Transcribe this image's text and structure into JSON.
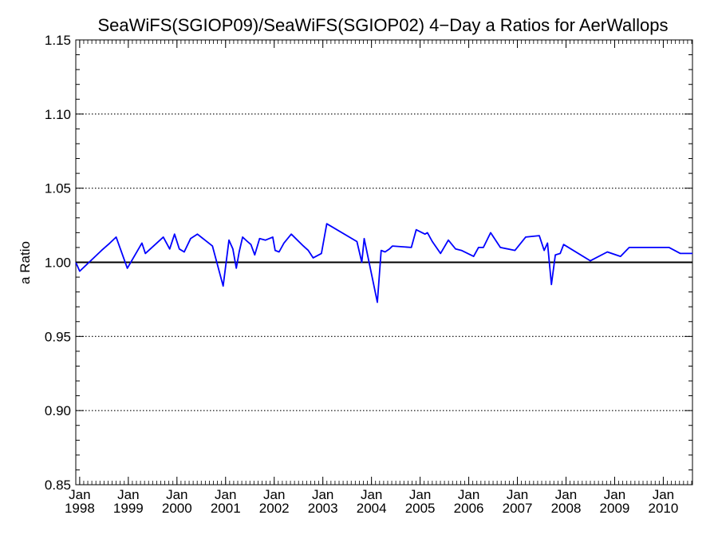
{
  "chart_data": {
    "type": "line",
    "title": "SeaWiFS(SGIOP09)/SeaWiFS(SGIOP02) 4−Day a Ratios for AerWallops",
    "xlabel": "",
    "ylabel": "a Ratio",
    "ylim": [
      0.85,
      1.15
    ],
    "yticks": [
      "0.85",
      "0.90",
      "0.95",
      "1.00",
      "1.05",
      "1.10",
      "1.15"
    ],
    "xlim": [
      1997.92,
      2010.6
    ],
    "xticks": [
      {
        "month": "Jan",
        "year": "1998"
      },
      {
        "month": "Jan",
        "year": "1999"
      },
      {
        "month": "Jan",
        "year": "2000"
      },
      {
        "month": "Jan",
        "year": "2001"
      },
      {
        "month": "Jan",
        "year": "2002"
      },
      {
        "month": "Jan",
        "year": "2003"
      },
      {
        "month": "Jan",
        "year": "2004"
      },
      {
        "month": "Jan",
        "year": "2005"
      },
      {
        "month": "Jan",
        "year": "2006"
      },
      {
        "month": "Jan",
        "year": "2007"
      },
      {
        "month": "Jan",
        "year": "2008"
      },
      {
        "month": "Jan",
        "year": "2009"
      },
      {
        "month": "Jan",
        "year": "2010"
      }
    ],
    "gridlines_y": [
      0.9,
      0.95,
      1.05,
      1.1
    ],
    "reference_line": 1.0,
    "series_color": "#0000ff",
    "series": [
      {
        "x": [
          1997.92,
          1998.0,
          1998.45,
          1998.62,
          1998.75,
          1998.98,
          1999.28,
          1999.35,
          1999.72,
          1999.85,
          1999.95,
          2000.05,
          2000.15,
          2000.28,
          2000.42,
          2000.73,
          2000.95,
          2001.07,
          2001.15,
          2001.22,
          2001.28,
          2001.35,
          2001.45,
          2001.52,
          2001.6,
          2001.7,
          2001.82,
          2001.97,
          2002.02,
          2002.1,
          2002.2,
          2002.35,
          2002.6,
          2002.7,
          2002.8,
          2002.97,
          2003.08,
          2003.7,
          2003.8,
          2003.85,
          2004.12,
          2004.2,
          2004.28,
          2004.37,
          2004.43,
          2004.82,
          2004.92,
          2005.1,
          2005.15,
          2005.25,
          2005.42,
          2005.58,
          2005.73,
          2005.85,
          2006.1,
          2006.2,
          2006.3,
          2006.45,
          2006.65,
          2006.95,
          2007.17,
          2007.45,
          2007.55,
          2007.62,
          2007.7,
          2007.78,
          2007.88,
          2007.95,
          2008.5,
          2008.85,
          2009.12,
          2009.3,
          2010.05,
          2010.12,
          2010.35,
          2010.45,
          2010.6
        ],
        "y": [
          1.0,
          0.994,
          1.008,
          1.013,
          1.017,
          0.996,
          1.013,
          1.006,
          1.017,
          1.009,
          1.019,
          1.009,
          1.007,
          1.016,
          1.019,
          1.011,
          0.984,
          1.015,
          1.009,
          0.996,
          1.007,
          1.017,
          1.014,
          1.012,
          1.005,
          1.016,
          1.015,
          1.017,
          1.008,
          1.007,
          1.013,
          1.019,
          1.011,
          1.008,
          1.003,
          1.006,
          1.026,
          1.014,
          1.0,
          1.016,
          0.973,
          1.008,
          1.007,
          1.009,
          1.011,
          1.01,
          1.022,
          1.019,
          1.02,
          1.014,
          1.006,
          1.015,
          1.009,
          1.008,
          1.004,
          1.01,
          1.01,
          1.02,
          1.01,
          1.008,
          1.017,
          1.018,
          1.008,
          1.013,
          0.985,
          1.005,
          1.006,
          1.012,
          1.001,
          1.007,
          1.004,
          1.01,
          1.01,
          1.01,
          1.006,
          1.006,
          1.006
        ]
      }
    ],
    "grid": true,
    "legend": "none"
  }
}
